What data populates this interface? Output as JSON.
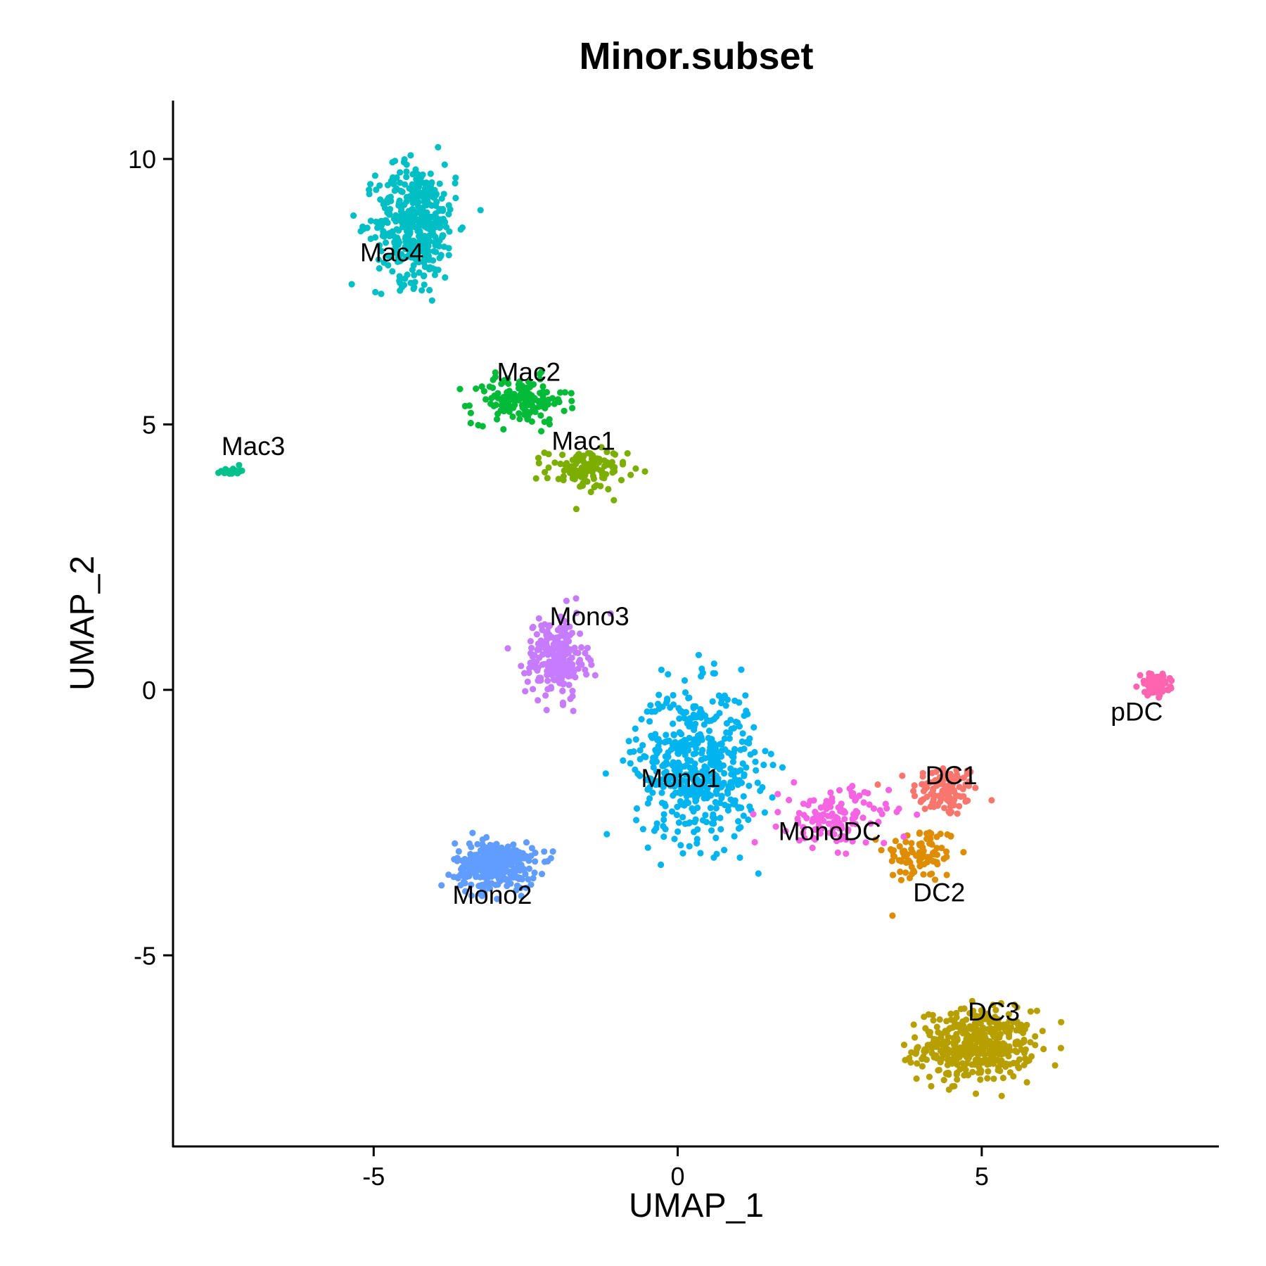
{
  "chart_data": {
    "type": "scatter",
    "title": "Minor.subset",
    "xlabel": "UMAP_1",
    "ylabel": "UMAP_2",
    "xlim": [
      -8.3,
      8.9
    ],
    "ylim": [
      -8.6,
      11.1
    ],
    "xticks": [
      -5,
      0,
      5
    ],
    "yticks": [
      -5,
      0,
      5,
      10
    ],
    "grid": false,
    "legend": "none",
    "clusters": [
      {
        "name": "DC1",
        "color": "#F8766D",
        "label_pos": [
          4.5,
          -1.65
        ],
        "center": [
          4.4,
          -1.9
        ],
        "spread": [
          0.5,
          0.45
        ],
        "n": 110
      },
      {
        "name": "DC2",
        "color": "#DE8C00",
        "label_pos": [
          4.3,
          -3.85
        ],
        "center": [
          4.0,
          -3.1
        ],
        "spread": [
          0.55,
          0.5
        ],
        "n": 90
      },
      {
        "name": "DC3",
        "color": "#B79F00",
        "label_pos": [
          5.2,
          -6.1
        ],
        "center": [
          4.9,
          -6.7
        ],
        "spread": [
          0.85,
          0.6
        ],
        "n": 420
      },
      {
        "name": "Mac1",
        "color": "#7CAE00",
        "label_pos": [
          -1.55,
          4.65
        ],
        "center": [
          -1.5,
          4.15
        ],
        "spread": [
          0.6,
          0.35
        ],
        "n": 110
      },
      {
        "name": "Mac2",
        "color": "#00BA38",
        "label_pos": [
          -2.45,
          5.95
        ],
        "center": [
          -2.6,
          5.45
        ],
        "spread": [
          0.7,
          0.4
        ],
        "n": 150
      },
      {
        "name": "Mac3",
        "color": "#00C08B",
        "label_pos": [
          -6.98,
          4.55
        ],
        "center": [
          -7.35,
          4.12
        ],
        "spread": [
          0.15,
          0.06
        ],
        "n": 30
      },
      {
        "name": "Mac4",
        "color": "#00BFC4",
        "label_pos": [
          -4.7,
          8.2
        ],
        "center": [
          -4.3,
          8.8
        ],
        "spread": [
          0.6,
          1.0
        ],
        "n": 420
      },
      {
        "name": "Mono1",
        "color": "#00B4F0",
        "label_pos": [
          0.05,
          -1.7
        ],
        "center": [
          0.3,
          -1.4
        ],
        "spread": [
          0.9,
          1.3
        ],
        "n": 520
      },
      {
        "name": "Mono2",
        "color": "#619CFF",
        "label_pos": [
          -3.05,
          -3.9
        ],
        "center": [
          -3.0,
          -3.3
        ],
        "spread": [
          0.6,
          0.4
        ],
        "n": 320
      },
      {
        "name": "Mono3",
        "color": "#C77CFF",
        "label_pos": [
          -1.45,
          1.35
        ],
        "center": [
          -2.0,
          0.6
        ],
        "spread": [
          0.45,
          0.7
        ],
        "n": 230
      },
      {
        "name": "MonoDC",
        "color": "#F564E3",
        "label_pos": [
          2.5,
          -2.7
        ],
        "center": [
          2.6,
          -2.4
        ],
        "spread": [
          0.8,
          0.5
        ],
        "n": 130
      },
      {
        "name": "pDC",
        "color": "#FF64B0",
        "label_pos": [
          7.55,
          -0.45
        ],
        "center": [
          7.85,
          0.1
        ],
        "spread": [
          0.22,
          0.18
        ],
        "n": 80
      }
    ]
  }
}
